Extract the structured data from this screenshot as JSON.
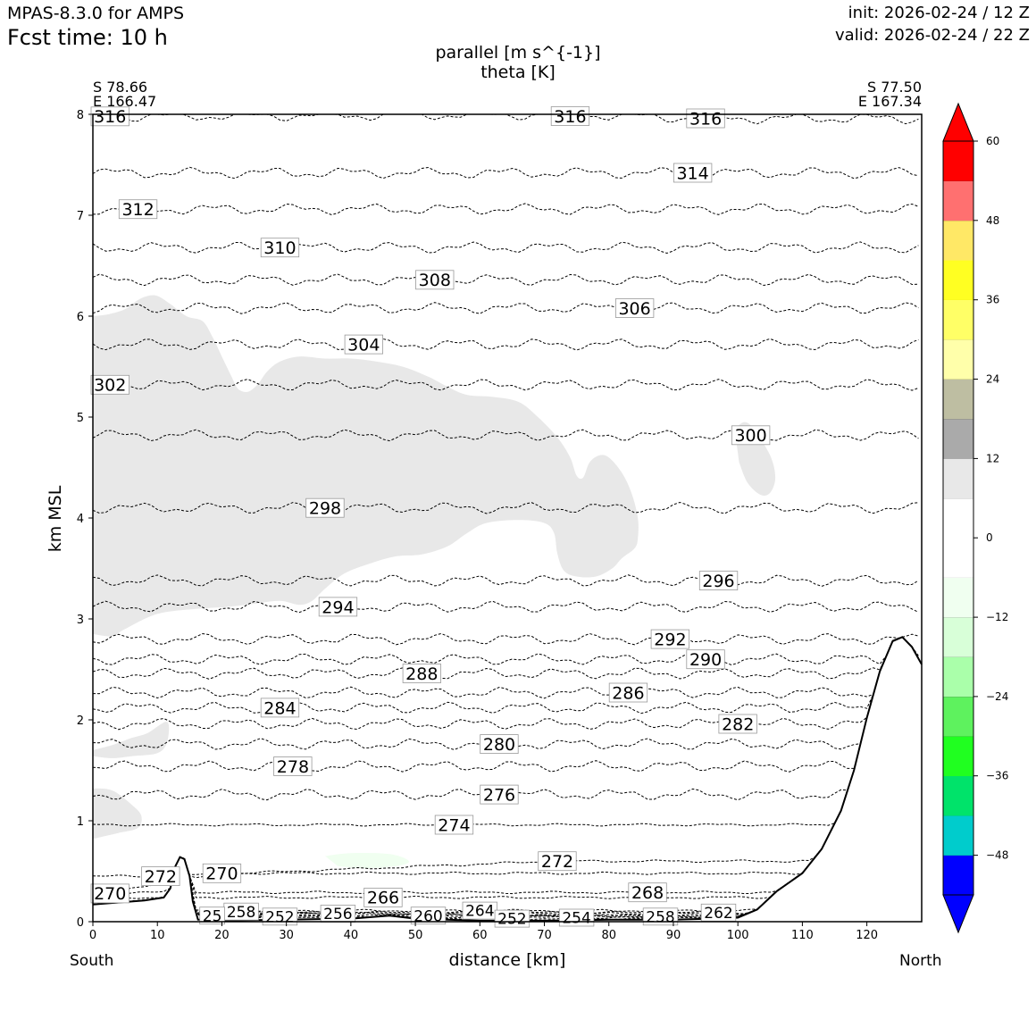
{
  "header": {
    "model": "MPAS-8.3.0 for AMPS",
    "forecast": "Fcst time:   10 h",
    "init": "init: 2026-02-24 / 12 Z",
    "valid": "valid: 2026-02-24 / 22 Z"
  },
  "chart_data": {
    "type": "contour",
    "title_lines": [
      "parallel [m s^{-1}]",
      "theta [K]"
    ],
    "xlabel": "distance [km]",
    "ylabel": "km MSL",
    "xlim": [
      0,
      128.5
    ],
    "ylim": [
      0,
      8
    ],
    "x_ticks": [
      0,
      10,
      20,
      30,
      40,
      50,
      60,
      70,
      80,
      90,
      100,
      110,
      120
    ],
    "y_ticks": [
      0,
      1,
      2,
      3,
      4,
      5,
      6,
      7,
      8
    ],
    "start_point": {
      "lat": "S 78.66",
      "lon": "E 166.47",
      "side": "South"
    },
    "end_point": {
      "lat": "S 77.50",
      "lon": "E 167.34",
      "side": "North"
    },
    "colorbar": {
      "ticks": [
        "60",
        "48",
        "36",
        "24",
        "12",
        "0",
        "−12",
        "−24",
        "−36",
        "−48"
      ],
      "colors": [
        "#0000ff",
        "#00cccc",
        "#00e36a",
        "#20ff20",
        "#5ef25e",
        "#aaffaa",
        "#d8ffd8",
        "#f0fff0",
        "#ffffff",
        "#ffffff",
        "#e8e8e8",
        "#aaaaaa",
        "#bebea2",
        "#ffffaa",
        "#ffff66",
        "#ffff22",
        "#ffe866",
        "#ff7070",
        "#ff0000"
      ]
    },
    "theta_contours": [
      {
        "label": "316",
        "x": 2,
        "y": 7.98
      },
      {
        "label": "316",
        "x": 74,
        "y": 8.0
      },
      {
        "label": "316",
        "x": 95,
        "y": 7.96
      },
      {
        "label": "314",
        "x": 93,
        "y": 7.42
      },
      {
        "label": "312",
        "x": 7,
        "y": 7.06
      },
      {
        "label": "310",
        "x": 29,
        "y": 6.68
      },
      {
        "label": "308",
        "x": 53,
        "y": 6.36
      },
      {
        "label": "306",
        "x": 84,
        "y": 6.08
      },
      {
        "label": "304",
        "x": 42,
        "y": 5.72
      },
      {
        "label": "302",
        "x": 2.5,
        "y": 5.32
      },
      {
        "label": "300",
        "x": 102,
        "y": 4.82
      },
      {
        "label": "298",
        "x": 36,
        "y": 4.1
      },
      {
        "label": "296",
        "x": 97,
        "y": 3.38
      },
      {
        "label": "294",
        "x": 38,
        "y": 3.12
      },
      {
        "label": "292",
        "x": 89.5,
        "y": 2.8
      },
      {
        "label": "290",
        "x": 95,
        "y": 2.6
      },
      {
        "label": "288",
        "x": 51,
        "y": 2.46
      },
      {
        "label": "286",
        "x": 83,
        "y": 2.27
      },
      {
        "label": "284",
        "x": 29,
        "y": 2.12
      },
      {
        "label": "282",
        "x": 100,
        "y": 1.96
      },
      {
        "label": "280",
        "x": 63,
        "y": 1.76
      },
      {
        "label": "278",
        "x": 31,
        "y": 1.54
      },
      {
        "label": "276",
        "x": 63,
        "y": 1.26
      },
      {
        "label": "274",
        "x": 56,
        "y": 0.96
      },
      {
        "label": "272",
        "x": 72,
        "y": 0.6
      },
      {
        "label": "272",
        "x": 10.5,
        "y": 0.45
      },
      {
        "label": "270",
        "x": 20,
        "y": 0.48
      },
      {
        "label": "270",
        "x": 2.2,
        "y": 0.28
      },
      {
        "label": "268",
        "x": 86,
        "y": 0.29
      },
      {
        "label": "266",
        "x": 45,
        "y": 0.24
      },
      {
        "label": "264",
        "x": 60,
        "y": 0.11
      },
      {
        "label": "262",
        "x": 97,
        "y": 0.09
      },
      {
        "label": "260",
        "x": 52,
        "y": 0.06
      },
      {
        "label": "258",
        "x": 23,
        "y": 0.1
      },
      {
        "label": "258",
        "x": 88,
        "y": 0.05
      },
      {
        "label": "256",
        "x": 38,
        "y": 0.08
      },
      {
        "label": "254",
        "x": 75,
        "y": 0.04
      },
      {
        "label": "252",
        "x": 29,
        "y": 0.05
      },
      {
        "label": "252",
        "x": 65,
        "y": 0.03
      },
      {
        "label": "25",
        "x": 18.5,
        "y": 0.06
      }
    ],
    "terrain": [
      [
        0,
        0.17
      ],
      [
        4,
        0.19
      ],
      [
        8,
        0.21
      ],
      [
        11,
        0.24
      ],
      [
        12,
        0.33
      ],
      [
        12.8,
        0.55
      ],
      [
        13.5,
        0.64
      ],
      [
        14.2,
        0.62
      ],
      [
        15,
        0.45
      ],
      [
        15.5,
        0.2
      ],
      [
        16.3,
        0.02
      ],
      [
        20,
        0.01
      ],
      [
        40,
        0.03
      ],
      [
        46,
        0.06
      ],
      [
        50,
        0.03
      ],
      [
        60,
        0.01
      ],
      [
        70,
        0.01
      ],
      [
        80,
        0.02
      ],
      [
        90,
        0.02
      ],
      [
        96,
        0.03
      ],
      [
        100,
        0.04
      ],
      [
        103,
        0.12
      ],
      [
        106,
        0.3
      ],
      [
        110,
        0.48
      ],
      [
        113,
        0.72
      ],
      [
        116,
        1.1
      ],
      [
        118,
        1.5
      ],
      [
        120,
        2.02
      ],
      [
        122,
        2.48
      ],
      [
        124,
        2.78
      ],
      [
        125.5,
        2.82
      ],
      [
        127,
        2.72
      ],
      [
        128.5,
        2.55
      ]
    ],
    "shaded_regions": [
      {
        "range": "12 to 18",
        "points": [
          [
            0,
            6.0
          ],
          [
            2.5,
            6.02
          ],
          [
            5,
            6.07
          ],
          [
            7,
            6.16
          ],
          [
            8.5,
            6.2
          ],
          [
            10,
            6.2
          ],
          [
            12,
            6.12
          ],
          [
            14.5,
            6.0
          ],
          [
            17,
            5.95
          ],
          [
            18.5,
            5.8
          ],
          [
            20,
            5.6
          ],
          [
            21.5,
            5.4
          ],
          [
            22.5,
            5.28
          ],
          [
            24,
            5.25
          ],
          [
            25.5,
            5.32
          ],
          [
            27,
            5.45
          ],
          [
            29,
            5.55
          ],
          [
            32,
            5.6
          ],
          [
            36,
            5.58
          ],
          [
            40,
            5.58
          ],
          [
            44,
            5.55
          ],
          [
            48,
            5.5
          ],
          [
            52,
            5.4
          ],
          [
            55,
            5.3
          ],
          [
            58,
            5.22
          ],
          [
            62,
            5.2
          ],
          [
            66,
            5.15
          ],
          [
            69,
            5.0
          ],
          [
            72,
            4.8
          ],
          [
            74,
            4.6
          ],
          [
            75,
            4.42
          ],
          [
            76,
            4.4
          ],
          [
            77,
            4.55
          ],
          [
            78.5,
            4.62
          ],
          [
            80,
            4.6
          ],
          [
            82,
            4.45
          ],
          [
            83.5,
            4.25
          ],
          [
            84.5,
            4.0
          ],
          [
            84.5,
            3.8
          ],
          [
            84,
            3.7
          ],
          [
            82,
            3.6
          ],
          [
            80.5,
            3.5
          ],
          [
            78,
            3.42
          ],
          [
            75,
            3.42
          ],
          [
            73,
            3.48
          ],
          [
            72,
            3.65
          ],
          [
            71.5,
            3.85
          ],
          [
            70,
            3.95
          ],
          [
            66,
            3.98
          ],
          [
            61,
            3.95
          ],
          [
            58,
            3.85
          ],
          [
            55,
            3.72
          ],
          [
            51,
            3.64
          ],
          [
            47,
            3.62
          ],
          [
            43,
            3.55
          ],
          [
            39,
            3.45
          ],
          [
            36,
            3.3
          ],
          [
            34,
            3.18
          ],
          [
            32,
            3.14
          ],
          [
            29,
            3.18
          ],
          [
            25,
            3.15
          ],
          [
            21,
            3.12
          ],
          [
            16,
            3.1
          ],
          [
            10,
            3.05
          ],
          [
            5,
            2.9
          ],
          [
            3,
            2.83
          ],
          [
            0,
            2.85
          ]
        ]
      },
      {
        "range": "12 to 18",
        "points": [
          [
            99.5,
            4.88
          ],
          [
            101,
            4.95
          ],
          [
            102.5,
            4.88
          ],
          [
            105,
            4.62
          ],
          [
            105.8,
            4.4
          ],
          [
            105,
            4.25
          ],
          [
            103.5,
            4.23
          ],
          [
            101.5,
            4.35
          ],
          [
            100.2,
            4.55
          ]
        ]
      },
      {
        "range": "12 to 18",
        "points": [
          [
            0,
            1.7
          ],
          [
            3,
            1.75
          ],
          [
            6,
            1.82
          ],
          [
            8.5,
            1.87
          ],
          [
            11.5,
            1.98
          ],
          [
            11.5,
            1.78
          ],
          [
            10,
            1.67
          ],
          [
            6,
            1.64
          ],
          [
            3,
            1.62
          ],
          [
            0,
            1.64
          ]
        ]
      },
      {
        "range": "12 to 18",
        "points": [
          [
            0,
            1.32
          ],
          [
            3,
            1.3
          ],
          [
            6,
            1.16
          ],
          [
            7.5,
            1.05
          ],
          [
            7,
            0.93
          ],
          [
            4,
            0.88
          ],
          [
            2,
            0.85
          ],
          [
            0,
            0.82
          ]
        ]
      },
      {
        "range": "-6 to 0",
        "points": [
          [
            36,
            0.65
          ],
          [
            40,
            0.68
          ],
          [
            46,
            0.67
          ],
          [
            49,
            0.6
          ],
          [
            47,
            0.55
          ],
          [
            42,
            0.53
          ],
          [
            38,
            0.55
          ]
        ]
      }
    ]
  }
}
